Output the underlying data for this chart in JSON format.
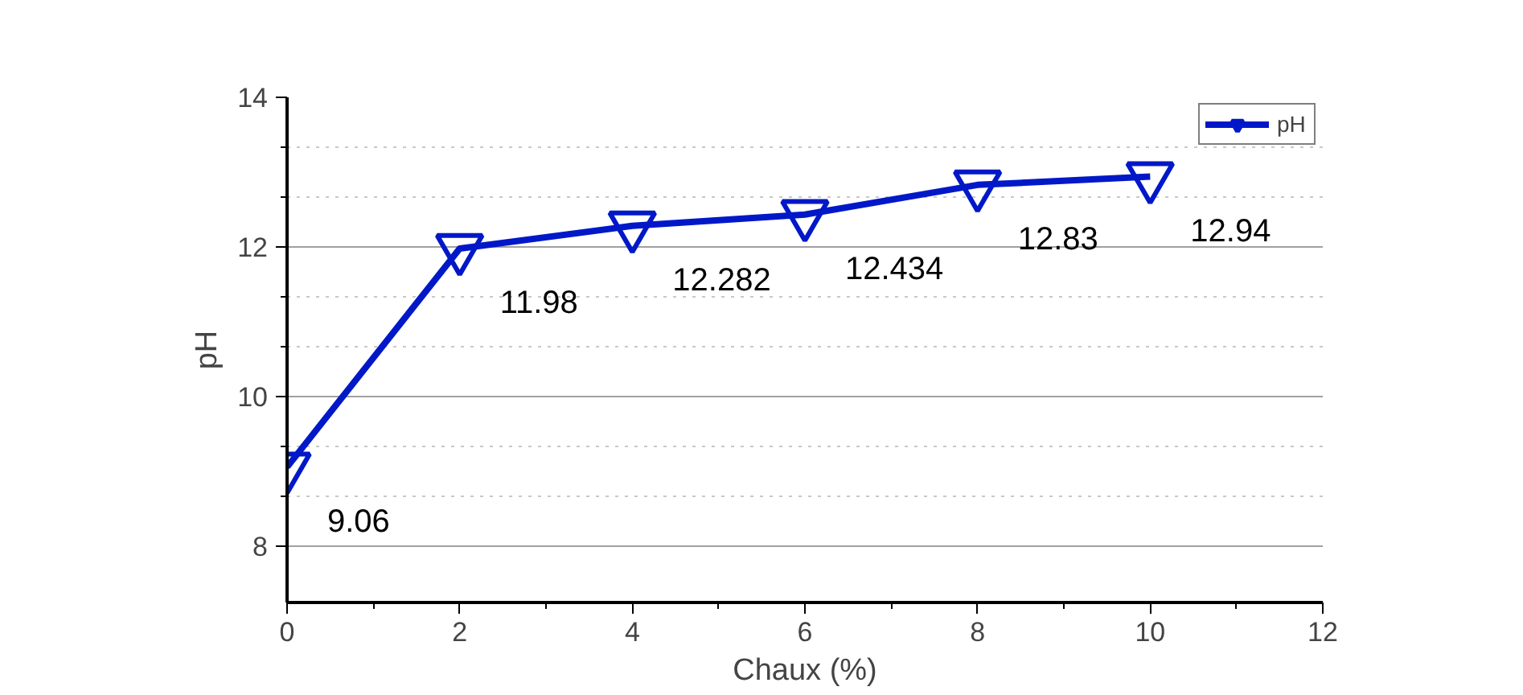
{
  "chart_data": {
    "type": "line",
    "xlabel": "Chaux (%)",
    "ylabel": "pH",
    "x": [
      0,
      2,
      4,
      6,
      8,
      10
    ],
    "series": [
      {
        "name": "pH",
        "color": "#0018c8",
        "values": [
          9.06,
          11.98,
          12.282,
          12.434,
          12.83,
          12.94
        ]
      }
    ],
    "value_labels": [
      "9.06",
      "11.98",
      "12.282",
      "12.434",
      "12.83",
      "12.94"
    ],
    "xlim": [
      0,
      12
    ],
    "xticks": [
      0,
      2,
      4,
      6,
      8,
      10,
      12
    ],
    "ylim": [
      7.25,
      14
    ],
    "yticks": [
      8,
      10,
      12,
      14
    ],
    "grid": "y",
    "legend": "top right",
    "marker": "triangle",
    "line_style": "solid"
  }
}
